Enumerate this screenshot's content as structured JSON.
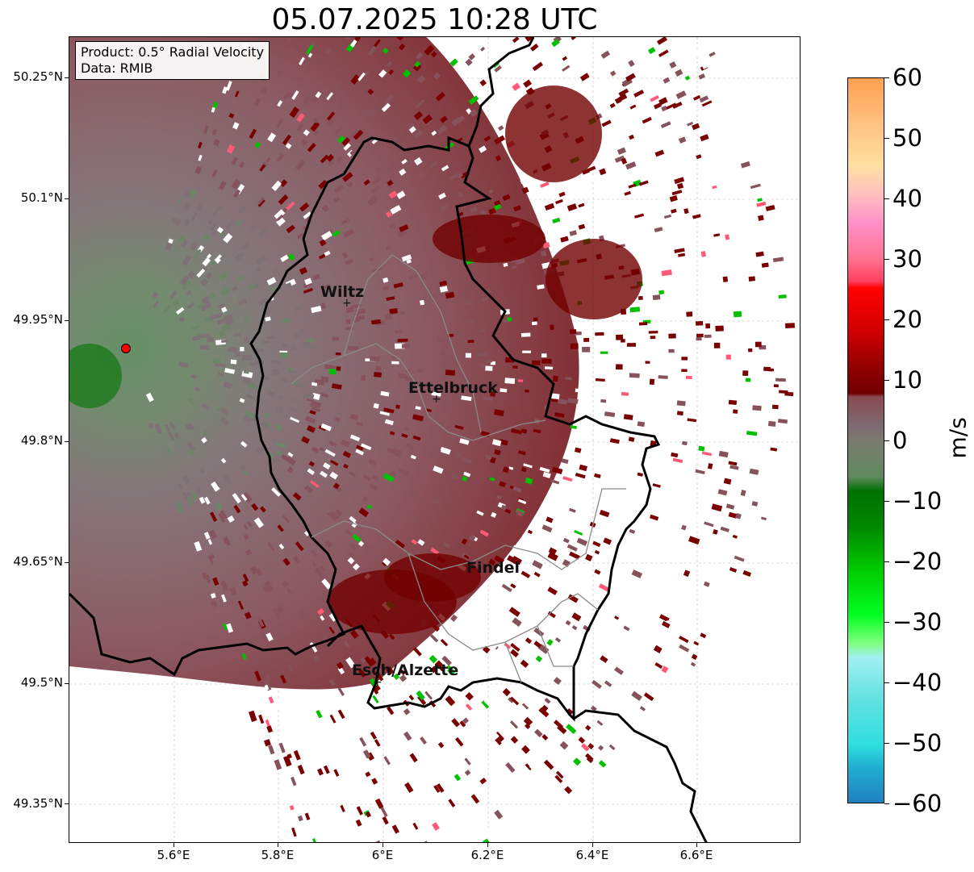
{
  "title": "05.07.2025 10:28 UTC",
  "info": {
    "product": "Product: 0.5° Radial Velocity",
    "data": "Data: RMIB"
  },
  "latitude_labels": [
    "50.25°N",
    "50.1°N",
    "49.95°N",
    "49.8°N",
    "49.65°N",
    "49.5°N",
    "49.35°N"
  ],
  "longitude_labels": [
    "5.6°E",
    "5.8°E",
    "6°E",
    "6.2°E",
    "6.4°E",
    "6.6°E"
  ],
  "cities": [
    "Wiltz",
    "Ettelbruck",
    "Findel",
    "Esch/Alzette"
  ],
  "colorbar": {
    "unit": "m/s",
    "tick_labels": [
      "60",
      "50",
      "40",
      "30",
      "20",
      "10",
      "0",
      "−10",
      "−20",
      "−30",
      "−40",
      "−50",
      "−60"
    ],
    "range": [
      -60,
      60
    ]
  },
  "colors": {
    "inbound_dark_red": "#7a0000",
    "mauve": "#8a4e56",
    "grey_mauve": "#7e6a6e",
    "green": "#00c000",
    "pink": "#ff5a78",
    "border": "#000000",
    "radar_site": "#ff0000"
  }
}
